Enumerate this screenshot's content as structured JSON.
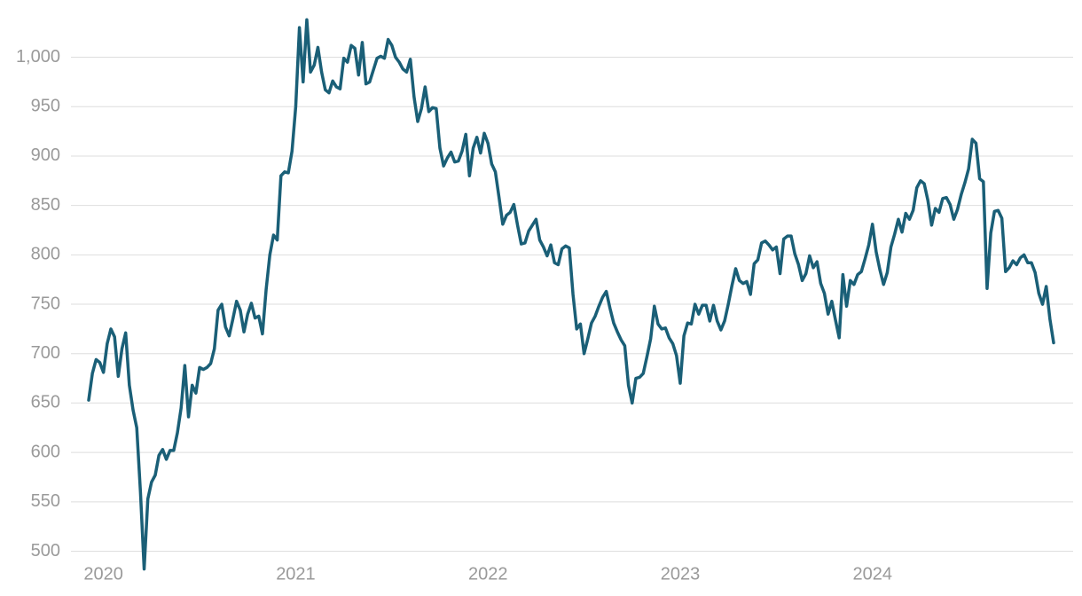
{
  "chart_data": {
    "type": "line",
    "categories": [
      null,
      null,
      null,
      null,
      "2020",
      null,
      null,
      null,
      null,
      null,
      null,
      null,
      null,
      null,
      null,
      null,
      null,
      null,
      null,
      null,
      null,
      null,
      null,
      null,
      null,
      null,
      null,
      null,
      null,
      null,
      null,
      null,
      null,
      null,
      null,
      null,
      null,
      null,
      null,
      null,
      null,
      null,
      null,
      null,
      null,
      null,
      null,
      null,
      null,
      null,
      null,
      null,
      null,
      null,
      null,
      null,
      "2021",
      null,
      null,
      null,
      null,
      null,
      null,
      null,
      null,
      null,
      null,
      null,
      null,
      null,
      null,
      null,
      null,
      null,
      null,
      null,
      null,
      null,
      null,
      null,
      null,
      null,
      null,
      null,
      null,
      null,
      null,
      null,
      null,
      null,
      null,
      null,
      null,
      null,
      null,
      null,
      null,
      null,
      null,
      null,
      null,
      null,
      null,
      null,
      null,
      null,
      null,
      null,
      "2022",
      null,
      null,
      null,
      null,
      null,
      null,
      null,
      null,
      null,
      null,
      null,
      null,
      null,
      null,
      null,
      null,
      null,
      null,
      null,
      null,
      null,
      null,
      null,
      null,
      null,
      null,
      null,
      null,
      null,
      null,
      null,
      null,
      null,
      null,
      null,
      null,
      null,
      null,
      null,
      null,
      null,
      null,
      null,
      null,
      null,
      null,
      null,
      null,
      null,
      null,
      null,
      "2023",
      null,
      null,
      null,
      null,
      null,
      null,
      null,
      null,
      null,
      null,
      null,
      null,
      null,
      null,
      null,
      null,
      null,
      null,
      null,
      null,
      null,
      null,
      null,
      null,
      null,
      null,
      null,
      null,
      null,
      null,
      null,
      null,
      null,
      null,
      null,
      null,
      null,
      null,
      null,
      null,
      null,
      null,
      null,
      null,
      null,
      null,
      null,
      null,
      null,
      null,
      null,
      "2024",
      null,
      null,
      null,
      null,
      null,
      null,
      null,
      null,
      null,
      null,
      null,
      null,
      null,
      null,
      null,
      null,
      null,
      null,
      null,
      null,
      null,
      null,
      null,
      null,
      null,
      null,
      null,
      null,
      null,
      null,
      null,
      null,
      null,
      null,
      null,
      null,
      null,
      null,
      null,
      null,
      null,
      null,
      null,
      null,
      null,
      null,
      null,
      null,
      null
    ],
    "values": [
      653,
      680,
      694,
      691,
      681,
      710,
      725,
      717,
      677,
      705,
      721,
      668,
      643,
      625,
      560,
      482,
      553,
      570,
      577,
      597,
      603,
      593,
      602,
      602,
      620,
      645,
      688,
      636,
      668,
      660,
      686,
      684,
      686,
      690,
      705,
      744,
      750,
      727,
      718,
      735,
      753,
      744,
      722,
      740,
      751,
      736,
      738,
      720,
      765,
      800,
      820,
      815,
      880,
      884,
      883,
      905,
      950,
      1030,
      975,
      1038,
      985,
      992,
      1010,
      985,
      967,
      964,
      976,
      970,
      968,
      999,
      995,
      1012,
      1009,
      982,
      1015,
      973,
      975,
      987,
      999,
      1001,
      999,
      1018,
      1012,
      1000,
      995,
      988,
      985,
      998,
      960,
      935,
      948,
      970,
      945,
      949,
      948,
      908,
      890,
      898,
      904,
      894,
      895,
      905,
      922,
      880,
      908,
      919,
      903,
      923,
      913,
      892,
      884,
      858,
      831,
      840,
      843,
      851,
      830,
      811,
      812,
      824,
      830,
      836,
      815,
      808,
      799,
      810,
      792,
      790,
      806,
      809,
      807,
      760,
      725,
      730,
      700,
      715,
      731,
      738,
      748,
      757,
      763,
      746,
      731,
      722,
      714,
      708,
      668,
      650,
      675,
      676,
      680,
      697,
      715,
      748,
      730,
      725,
      726,
      716,
      710,
      698,
      670,
      718,
      731,
      730,
      750,
      740,
      749,
      749,
      733,
      749,
      733,
      724,
      733,
      750,
      769,
      786,
      774,
      771,
      773,
      760,
      791,
      795,
      812,
      814,
      810,
      805,
      808,
      781,
      816,
      819,
      819,
      801,
      790,
      774,
      781,
      799,
      787,
      793,
      771,
      761,
      740,
      753,
      734,
      716,
      780,
      748,
      774,
      770,
      780,
      783,
      796,
      810,
      831,
      803,
      785,
      770,
      782,
      808,
      821,
      836,
      823,
      842,
      836,
      845,
      868,
      875,
      872,
      855,
      830,
      847,
      843,
      857,
      858,
      851,
      836,
      846,
      861,
      873,
      887,
      917,
      913,
      877,
      874,
      766,
      822,
      844,
      845,
      837,
      783,
      787,
      794,
      790,
      797,
      800,
      792,
      792,
      782,
      761,
      750,
      768,
      735,
      711
    ],
    "color": "#1a5f77",
    "ylim": [
      487,
      1040
    ],
    "yticks": [
      500,
      550,
      600,
      650,
      700,
      750,
      800,
      850,
      900,
      950,
      {
        "value": 1000,
        "label": "1,000"
      }
    ],
    "grid": true
  }
}
